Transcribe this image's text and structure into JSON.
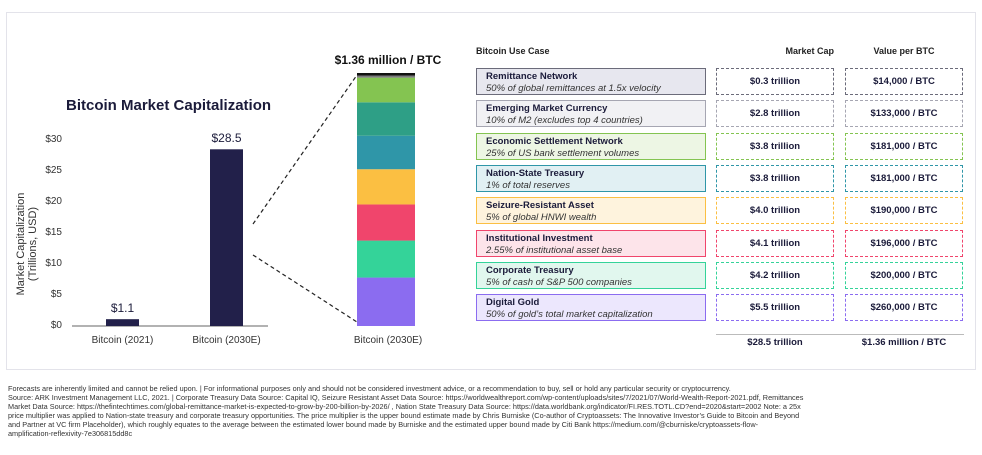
{
  "chart_data": [
    {
      "type": "bar",
      "title": "Bitcoin Market Capitalization",
      "ylabel": "Market Capitalization (Trillions, USD)",
      "categories": [
        "Bitcoin (2021)",
        "Bitcoin (2030E)"
      ],
      "values": [
        1.1,
        28.5
      ],
      "value_labels": [
        "$1.1",
        "$28.5"
      ],
      "ylim": [
        0,
        30
      ],
      "yticks": [
        0,
        5,
        10,
        15,
        20,
        25,
        30
      ],
      "ytick_labels": [
        "$0",
        "$5",
        "$10",
        "$15",
        "$20",
        "$25",
        "$30"
      ],
      "bar_color": "#22204a",
      "grid": false
    },
    {
      "type": "bar",
      "stacked": true,
      "title": "$1.36 million / BTC",
      "categories": [
        "Bitcoin (2030E)"
      ],
      "series": [
        {
          "values": [
            5.5
          ],
          "color": "#8b6cf0"
        },
        {
          "values": [
            4.2
          ],
          "color": "#34d399"
        },
        {
          "values": [
            4.1
          ],
          "color": "#f0456c"
        },
        {
          "values": [
            4.0
          ],
          "color": "#fbbf42"
        },
        {
          "values": [
            3.8
          ],
          "color": "#2f96a8"
        },
        {
          "values": [
            3.8
          ],
          "color": "#2e9f86"
        },
        {
          "values": [
            2.8
          ],
          "color": "#84c451"
        },
        {
          "values": [
            0.3
          ],
          "color": "#7b7b7b"
        }
      ]
    },
    {
      "type": "table",
      "columns": [
        "Bitcoin Use Case",
        "Market Cap",
        "Value per BTC"
      ],
      "rows": [
        {
          "name": "Remittance Network",
          "sub": "50% of global remittances at 1.5x velocity",
          "cap": "$0.3 trillion",
          "value": "$14,000 / BTC",
          "color": "#6b6b7a",
          "bg": "#e7e7ef"
        },
        {
          "name": "Emerging Market Currency",
          "sub": "10% of M2 (excludes top 4 countries)",
          "cap": "$2.8 trillion",
          "value": "$133,000 / BTC",
          "color": "#a6a6b2",
          "bg": "#f1f1f4"
        },
        {
          "name": "Economic Settlement Network",
          "sub": "25% of US bank settlement volumes",
          "cap": "$3.8 trillion",
          "value": "$181,000 / BTC",
          "color": "#84c451",
          "bg": "#edf6e4"
        },
        {
          "name": "Nation-State Treasury",
          "sub": "1% of total reserves",
          "cap": "$3.8 trillion",
          "value": "$181,000 / BTC",
          "color": "#2f96a8",
          "bg": "#e1f0f3"
        },
        {
          "name": "Seizure-Resistant Asset",
          "sub": "5% of global HNWI wealth",
          "cap": "$4.0 trillion",
          "value": "$190,000 / BTC",
          "color": "#fbbf42",
          "bg": "#fef3dd"
        },
        {
          "name": "Institutional Investment",
          "sub": "2.55% of institutional asset base",
          "cap": "$4.1 trillion",
          "value": "$196,000 / BTC",
          "color": "#f0456c",
          "bg": "#fde4ea"
        },
        {
          "name": "Corporate Treasury",
          "sub": "5% of cash of S&P 500 companies",
          "cap": "$4.2 trillion",
          "value": "$200,000 / BTC",
          "color": "#34d399",
          "bg": "#e1f7ee"
        },
        {
          "name": "Digital Gold",
          "sub": "50% of gold’s total market capitalization",
          "cap": "$5.5 trillion",
          "value": "$260,000 / BTC",
          "color": "#8b6cf0",
          "bg": "#ece7fd"
        }
      ],
      "totals": {
        "cap": "$28.5 trillion",
        "value": "$1.36 million / BTC"
      }
    }
  ],
  "footer": [
    "Forecasts are inherently limited and cannot be relied upon. | For informational purposes only and should not be considered investment advice, or a recommendation to buy, sell or hold any particular security or cryptocurrency.",
    "Source: ARK Investment Management LLC, 2021. | Corporate Treasury Data Source: Capital IQ, Seizure Resistant Asset Data Source: https://worldwealthreport.com/wp-content/uploads/sites/7/2021/07/World-Wealth-Report-2021.pdf, Remittances",
    "Market Data Source: https://thefintechtimes.com/global-remittance-market-is-expected-to-grow-by-200-billion-by-2026/ , Nation State Treasury Data Source: https://data.worldbank.org/indicator/FI.RES.TOTL.CD?end=2020&start=2002 Note: a 25x",
    "price multiplier was applied to Nation-state treasury and corporate treasury opportunities. The price multiplier is the upper bound estimate made by Chris Burniske (Co-author of Cryptoassets: The Innovative Investor’s Guide to Bitcoin and Beyond",
    "and Partner at VC firm Placeholder), which roughly equates to the average between the estimated lower bound made by Burniske and the estimated upper bound made by Citi Bank https://medium.com/@cburniske/cryptoassets-flow-",
    "amplification-reflexivity-7e306815dd8c"
  ]
}
